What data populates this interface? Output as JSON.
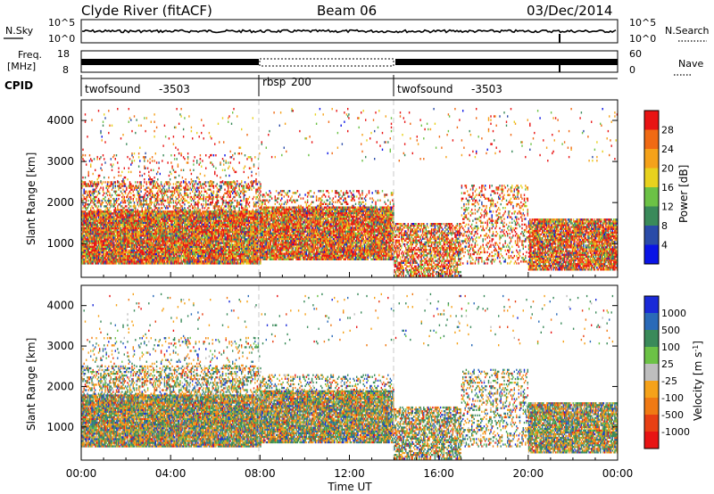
{
  "header": {
    "station": "Clyde River (fitACF)",
    "beam": "Beam 06",
    "date": "03/Dec/2014"
  },
  "noise_panel": {
    "left_label": "N.Sky",
    "right_label": "N.Search",
    "tick_top": "10^5",
    "tick_bottom": "10^0",
    "right_tick_top": "10^5",
    "right_tick_bottom": "10^0"
  },
  "freq_panel": {
    "left_label_1": "Freq.",
    "left_label_2": "[MHz]",
    "right_label": "Nave",
    "left_ticks": [
      "18",
      "8"
    ],
    "right_ticks": [
      "60",
      "0"
    ]
  },
  "cpid_panel": {
    "label": "CPID",
    "programs": [
      {
        "name": "twofsound",
        "id": "-3503",
        "start_hour": 0
      },
      {
        "name": "rbsp",
        "id": "200",
        "start_hour": 8
      },
      {
        "name": "twofsound",
        "id": "-3503",
        "start_hour": 14
      }
    ]
  },
  "power_panel": {
    "ylabel": "Slant Range [km]",
    "yticks": [
      "1000",
      "2000",
      "3000",
      "4000"
    ],
    "colorbar_label": "Power [dB]",
    "colorbar_ticks": [
      "4",
      "8",
      "12",
      "16",
      "20",
      "24",
      "28"
    ],
    "colorbar_colors": [
      "#0a14e6",
      "#2a4ba8",
      "#3a8a5a",
      "#6cc246",
      "#e8d21e",
      "#f5a21a",
      "#f06a14",
      "#e81414"
    ]
  },
  "velocity_panel": {
    "ylabel": "Slant Range [km]",
    "yticks": [
      "1000",
      "2000",
      "3000",
      "4000"
    ],
    "colorbar_label": "Velocity [m s",
    "colorbar_label_sup": "-1",
    "colorbar_label_end": "]",
    "colorbar_ticks": [
      "1000",
      "500",
      "100",
      "25",
      "-25",
      "-100",
      "-500",
      "-1000"
    ],
    "colorbar_colors": [
      "#1a2ad8",
      "#2a6ab8",
      "#3a8a5a",
      "#6cc246",
      "#bebebe",
      "#f5a21a",
      "#f07a14",
      "#e84014",
      "#e81414"
    ]
  },
  "x_axis": {
    "label": "Time UT",
    "ticks": [
      "00:00",
      "04:00",
      "08:00",
      "12:00",
      "16:00",
      "20:00",
      "00:00"
    ]
  },
  "chart_data": {
    "type": "heatmap",
    "panels": [
      {
        "name": "Power",
        "units": "dB",
        "clim": [
          0,
          30
        ]
      },
      {
        "name": "Velocity",
        "units": "m s^-1",
        "clim": [
          -1000,
          1000
        ]
      }
    ],
    "x_range_hours": [
      0,
      24
    ],
    "y_range_km": [
      180,
      4500
    ],
    "x_ticks_hours": [
      0,
      4,
      8,
      12,
      16,
      20,
      24
    ],
    "y_ticks_km": [
      1000,
      2000,
      3000,
      4000
    ],
    "mode_changes_hours": [
      8,
      14
    ]
  }
}
